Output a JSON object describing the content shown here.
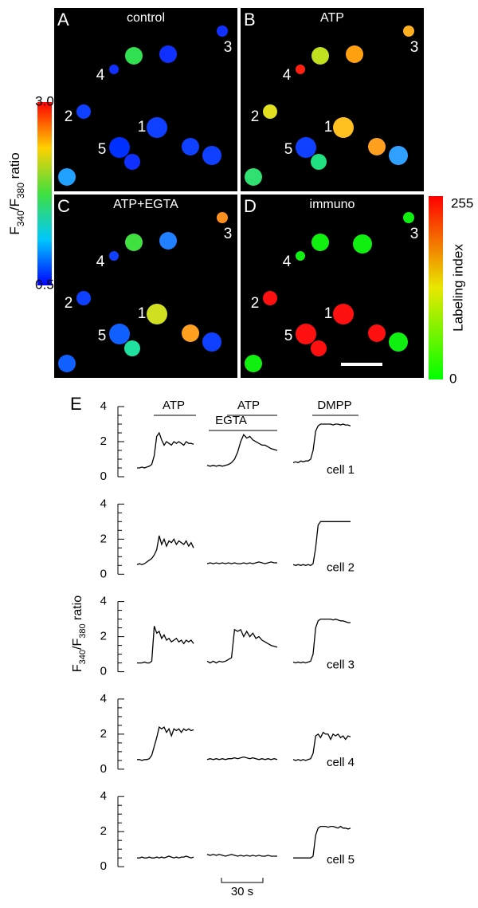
{
  "image_panels": [
    {
      "letter": "A",
      "title": "control"
    },
    {
      "letter": "B",
      "title": "ATP"
    },
    {
      "letter": "C",
      "title": "ATP+EGTA"
    },
    {
      "letter": "D",
      "title": "immuno"
    }
  ],
  "cell_numbers": [
    "1",
    "2",
    "3",
    "4",
    "5"
  ],
  "ratio_bar": {
    "max": "3.0",
    "min": "0.5",
    "label_parts": [
      "F",
      "340",
      "/F",
      "380",
      " ratio"
    ]
  },
  "labeling_bar": {
    "max": "255",
    "min": "0",
    "label": "Labeling index"
  },
  "traces_letter": "E",
  "conditions": [
    "ATP",
    "ATP",
    "EGTA",
    "DMPP"
  ],
  "y_label_parts": [
    "F",
    "340",
    "/F",
    "380",
    " ratio"
  ],
  "time_scale_label": "30 s",
  "chart_data": [
    {
      "type": "line",
      "label": "cell 1",
      "ylim": [
        0,
        4
      ],
      "yticks": [
        0,
        2,
        4
      ],
      "minor_yticks": [
        0.5,
        1,
        1.5,
        2.5,
        3,
        3.5
      ],
      "series": [
        {
          "color": "#000000",
          "values": [
            0.5,
            0.5,
            0.55,
            0.5,
            0.55,
            0.6,
            0.7,
            1.2,
            2.3,
            2.5,
            2.1,
            1.8,
            2.0,
            1.9,
            1.8,
            2.0,
            1.9,
            2.0,
            1.9,
            1.8,
            2.0,
            1.9,
            1.9,
            1.85
          ]
        },
        {
          "color": "#000000",
          "values": [
            0.65,
            0.6,
            0.65,
            0.6,
            0.65,
            0.6,
            0.65,
            0.7,
            0.8,
            1.0,
            1.4,
            2.0,
            2.4,
            2.2,
            2.3,
            2.1,
            2.0,
            1.9,
            1.8,
            1.8,
            1.7,
            1.6,
            1.55,
            1.5
          ]
        },
        {
          "color": "#000000",
          "values": [
            0.8,
            0.85,
            0.8,
            0.9,
            0.85,
            0.9,
            0.9,
            1.0,
            1.5,
            2.6,
            2.9,
            3.0,
            3.0,
            3.0,
            3.0,
            3.0,
            2.95,
            3.0,
            3.0,
            2.95,
            3.0,
            2.95,
            2.95,
            2.9
          ]
        }
      ]
    },
    {
      "type": "line",
      "label": "cell 2",
      "ylim": [
        0,
        4
      ],
      "yticks": [
        0,
        2,
        4
      ],
      "minor_yticks": [
        0.5,
        1,
        1.5,
        2.5,
        3,
        3.5
      ],
      "series": [
        {
          "color": "#000000",
          "values": [
            0.55,
            0.6,
            0.55,
            0.6,
            0.7,
            0.8,
            0.9,
            1.1,
            1.4,
            2.2,
            1.7,
            2.0,
            1.6,
            1.9,
            1.8,
            2.0,
            1.7,
            1.9,
            1.8,
            1.7,
            1.9,
            1.6,
            1.8,
            1.5
          ]
        },
        {
          "color": "#000000",
          "values": [
            0.6,
            0.65,
            0.6,
            0.65,
            0.6,
            0.65,
            0.6,
            0.65,
            0.6,
            0.65,
            0.6,
            0.6,
            0.65,
            0.6,
            0.65,
            0.6,
            0.65,
            0.7,
            0.65,
            0.6,
            0.65,
            0.7,
            0.65,
            0.65
          ]
        },
        {
          "color": "#000000",
          "values": [
            0.55,
            0.5,
            0.55,
            0.5,
            0.55,
            0.5,
            0.55,
            0.5,
            0.6,
            1.5,
            2.8,
            3.0,
            3.0,
            3.0,
            3.0,
            3.0,
            3.0,
            3.0,
            3.0,
            3.0,
            3.0,
            3.0,
            3.0,
            3.0
          ]
        }
      ]
    },
    {
      "type": "line",
      "label": "cell 3",
      "ylim": [
        0,
        4
      ],
      "yticks": [
        0,
        2,
        4
      ],
      "minor_yticks": [
        0.5,
        1,
        1.5,
        2.5,
        3,
        3.5
      ],
      "series": [
        {
          "color": "#000000",
          "values": [
            0.5,
            0.5,
            0.5,
            0.55,
            0.5,
            0.5,
            0.6,
            2.6,
            2.2,
            2.3,
            1.9,
            2.1,
            1.8,
            1.9,
            1.7,
            1.8,
            1.9,
            1.7,
            1.8,
            1.6,
            1.8,
            1.7,
            1.8,
            1.6
          ]
        },
        {
          "color": "#000000",
          "values": [
            0.6,
            0.5,
            0.6,
            0.5,
            0.6,
            0.55,
            0.6,
            0.7,
            0.8,
            2.4,
            2.3,
            2.4,
            2.0,
            2.3,
            2.0,
            2.2,
            1.9,
            2.0,
            1.8,
            1.7,
            1.6,
            1.5,
            1.45,
            1.4
          ]
        },
        {
          "color": "#000000",
          "values": [
            0.55,
            0.5,
            0.55,
            0.5,
            0.55,
            0.5,
            0.55,
            0.6,
            1.0,
            2.5,
            2.9,
            3.0,
            3.0,
            3.0,
            3.0,
            3.0,
            2.95,
            3.0,
            2.95,
            2.9,
            2.9,
            2.85,
            2.8,
            2.8
          ]
        }
      ]
    },
    {
      "type": "line",
      "label": "cell 4",
      "ylim": [
        0,
        4
      ],
      "yticks": [
        0,
        2,
        4
      ],
      "minor_yticks": [
        0.5,
        1,
        1.5,
        2.5,
        3,
        3.5
      ],
      "series": [
        {
          "color": "#000000",
          "values": [
            0.55,
            0.55,
            0.5,
            0.55,
            0.55,
            0.6,
            0.8,
            1.3,
            1.8,
            2.4,
            2.3,
            2.4,
            2.1,
            2.3,
            1.9,
            2.3,
            2.2,
            2.3,
            2.1,
            2.3,
            2.2,
            2.3,
            2.2,
            2.25
          ]
        },
        {
          "color": "#000000",
          "values": [
            0.55,
            0.6,
            0.55,
            0.6,
            0.55,
            0.6,
            0.55,
            0.6,
            0.6,
            0.65,
            0.6,
            0.65,
            0.7,
            0.65,
            0.6,
            0.65,
            0.6,
            0.55,
            0.6,
            0.55,
            0.6,
            0.55,
            0.6,
            0.55
          ]
        },
        {
          "color": "#000000",
          "values": [
            0.55,
            0.5,
            0.55,
            0.5,
            0.55,
            0.5,
            0.55,
            0.6,
            0.9,
            1.9,
            2.0,
            1.8,
            2.1,
            2.0,
            2.0,
            1.7,
            2.0,
            1.9,
            2.0,
            1.8,
            1.9,
            1.7,
            1.9,
            1.85
          ]
        }
      ]
    },
    {
      "type": "line",
      "label": "cell 5",
      "ylim": [
        0,
        4
      ],
      "yticks": [
        0,
        2,
        4
      ],
      "minor_yticks": [
        0.5,
        1,
        1.5,
        2.5,
        3,
        3.5
      ],
      "series": [
        {
          "color": "#000000",
          "values": [
            0.5,
            0.5,
            0.55,
            0.5,
            0.5,
            0.55,
            0.5,
            0.5,
            0.55,
            0.5,
            0.55,
            0.5,
            0.55,
            0.6,
            0.55,
            0.5,
            0.55,
            0.5,
            0.55,
            0.55,
            0.6,
            0.55,
            0.5,
            0.55
          ]
        },
        {
          "color": "#000000",
          "values": [
            0.7,
            0.65,
            0.7,
            0.65,
            0.7,
            0.65,
            0.6,
            0.65,
            0.7,
            0.65,
            0.6,
            0.65,
            0.6,
            0.65,
            0.6,
            0.65,
            0.6,
            0.65,
            0.6,
            0.6,
            0.65,
            0.6,
            0.6,
            0.6
          ]
        },
        {
          "color": "#000000",
          "values": [
            0.5,
            0.5,
            0.5,
            0.5,
            0.5,
            0.5,
            0.5,
            0.5,
            0.6,
            1.8,
            2.2,
            2.3,
            2.3,
            2.3,
            2.25,
            2.3,
            2.3,
            2.25,
            2.2,
            2.3,
            2.2,
            2.2,
            2.15,
            2.2
          ]
        }
      ]
    }
  ]
}
